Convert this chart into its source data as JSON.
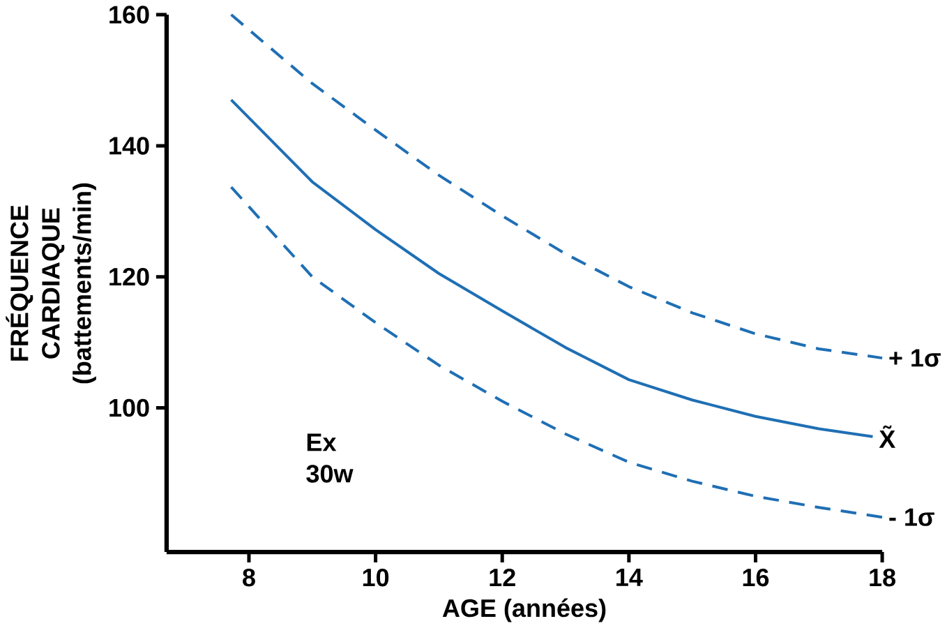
{
  "chart_data": {
    "type": "line",
    "xlabel": "AGE (années)",
    "ylabel": "FRÉQUENCE CARDIAQUE (battements/min)",
    "xlim": [
      6.7,
      18
    ],
    "ylim": [
      78,
      160
    ],
    "xticks": [
      8,
      10,
      12,
      14,
      16,
      18
    ],
    "yticks": [
      100,
      120,
      140,
      160
    ],
    "marker": "none",
    "annotations": [
      "Ex 30w"
    ],
    "series": [
      {
        "name": "+ 1σ",
        "color": "#1f6fb4",
        "line_style": "dashed",
        "x": [
          7.72,
          9,
          10,
          11,
          12,
          13,
          14,
          15,
          16,
          17,
          18
        ],
        "values": [
          160,
          149.5,
          142.4,
          135.5,
          129.3,
          123.5,
          118.5,
          114.5,
          111.3,
          109,
          107.6
        ]
      },
      {
        "name": "X̃",
        "color": "#1f6fb4",
        "line_style": "solid",
        "x": [
          7.72,
          9,
          10,
          11,
          12,
          13,
          14,
          15,
          16,
          17,
          17.85
        ],
        "values": [
          147,
          134.5,
          127.2,
          120.5,
          114.8,
          109.2,
          104.3,
          101.2,
          98.7,
          96.8,
          95.6
        ]
      },
      {
        "name": "- 1σ",
        "color": "#1f6fb4",
        "line_style": "dashed",
        "x": [
          7.72,
          9,
          10,
          11,
          12,
          13,
          14,
          15,
          16,
          17,
          18
        ],
        "values": [
          133.7,
          120,
          113,
          106.5,
          101,
          96,
          91.7,
          88.8,
          86.5,
          84.8,
          83.3
        ]
      }
    ]
  }
}
